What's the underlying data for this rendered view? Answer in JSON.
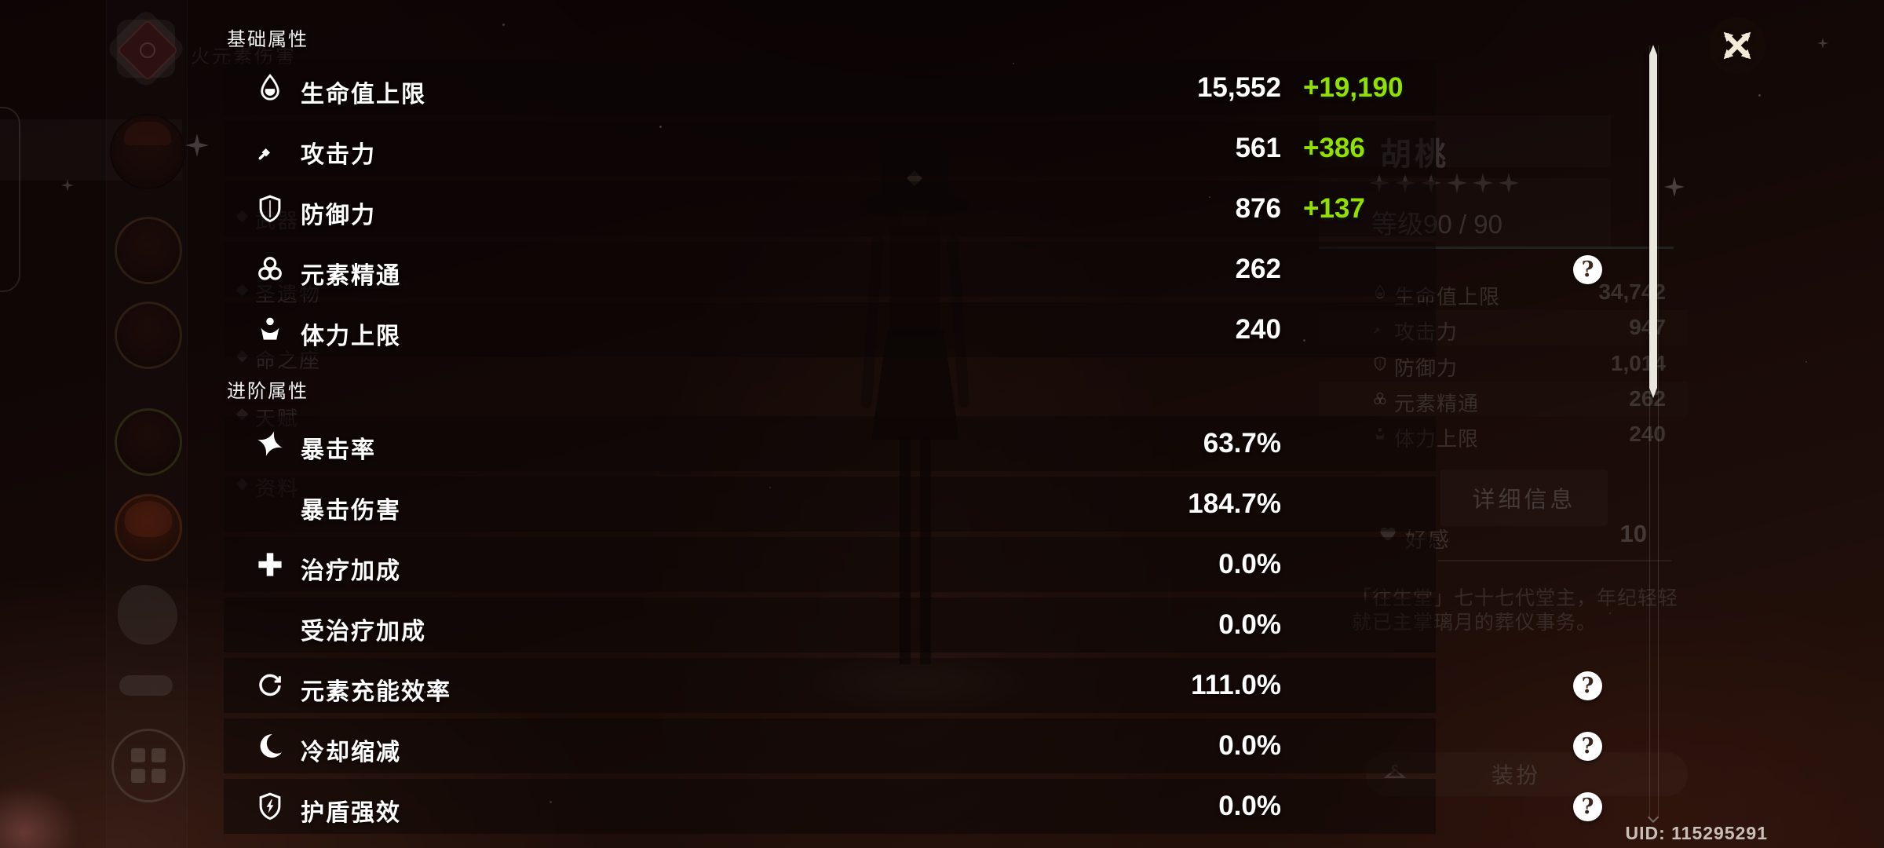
{
  "app": {
    "uid_label": "UID: 115295291",
    "help_glyph": "?"
  },
  "colors": {
    "bonus_green": "#92e000",
    "scene_brown": "#38190f",
    "scrollbar": "#ebe7df",
    "teal_line": "rgba(80,170,150,0.35)"
  },
  "overlay": {
    "sections": [
      {
        "title": "基础属性",
        "rows": [
          {
            "icon": "hp-drop",
            "label": "生命值上限",
            "value": "15,552",
            "bonus": "+19,190",
            "help": false
          },
          {
            "icon": "sword",
            "label": "攻击力",
            "value": "561",
            "bonus": "+386",
            "help": false
          },
          {
            "icon": "shield",
            "label": "防御力",
            "value": "876",
            "bonus": "+137",
            "help": false
          },
          {
            "icon": "elemental-mastery",
            "label": "元素精通",
            "value": "262",
            "bonus": "",
            "help": true
          },
          {
            "icon": "stamina",
            "label": "体力上限",
            "value": "240",
            "bonus": "",
            "help": false
          }
        ]
      },
      {
        "title": "进阶属性",
        "rows": [
          {
            "icon": "crit-rate",
            "label": "暴击率",
            "value": "63.7%",
            "bonus": "",
            "help": false
          },
          {
            "icon": null,
            "label": "暴击伤害",
            "value": "184.7%",
            "bonus": "",
            "help": false
          },
          {
            "icon": "healing",
            "label": "治疗加成",
            "value": "0.0%",
            "bonus": "",
            "help": false
          },
          {
            "icon": null,
            "label": "受治疗加成",
            "value": "0.0%",
            "bonus": "",
            "help": false
          },
          {
            "icon": "energy-recharge",
            "label": "元素充能效率",
            "value": "111.0%",
            "bonus": "",
            "help": true
          },
          {
            "icon": "cooldown",
            "label": "冷却缩减",
            "value": "0.0%",
            "bonus": "",
            "help": true
          },
          {
            "icon": "shield-strength",
            "label": "护盾强效",
            "value": "0.0%",
            "bonus": "",
            "help": true
          }
        ]
      }
    ]
  },
  "nav": {
    "element_label": "火元素伤害",
    "items": [
      "武器",
      "圣遗物",
      "命之座",
      "天赋",
      "资料"
    ]
  },
  "character_panel": {
    "name": "胡桃",
    "stars": 6,
    "level_label": "等级90 / 90",
    "stats": [
      {
        "icon": "hp-drop",
        "label": "生命值上限",
        "value": "34,742"
      },
      {
        "icon": "sword",
        "label": "攻击力",
        "value": "947"
      },
      {
        "icon": "shield",
        "label": "防御力",
        "value": "1,014"
      },
      {
        "icon": "elemental-mastery",
        "label": "元素精通",
        "value": "262"
      },
      {
        "icon": "stamina",
        "label": "体力上限",
        "value": "240"
      }
    ],
    "details_button_label": "详细信息",
    "friendship": {
      "label": "好感",
      "value": "10"
    },
    "description_lines": [
      "「往生堂」七十七代堂主，年纪轻轻",
      "就已主掌璃月的葬仪事务。"
    ],
    "outfit_button_label": "装扮"
  },
  "sidebar": {
    "items": [
      {
        "type": "element-emblem-pyro"
      },
      {
        "type": "avatar-hutao-selected"
      },
      {
        "type": "avatar-character"
      },
      {
        "type": "avatar-character"
      },
      {
        "type": "avatar-character-green"
      },
      {
        "type": "avatar-character-red"
      },
      {
        "type": "companion-figure"
      },
      {
        "type": "companion-animal"
      },
      {
        "type": "party-grid-button"
      }
    ]
  }
}
